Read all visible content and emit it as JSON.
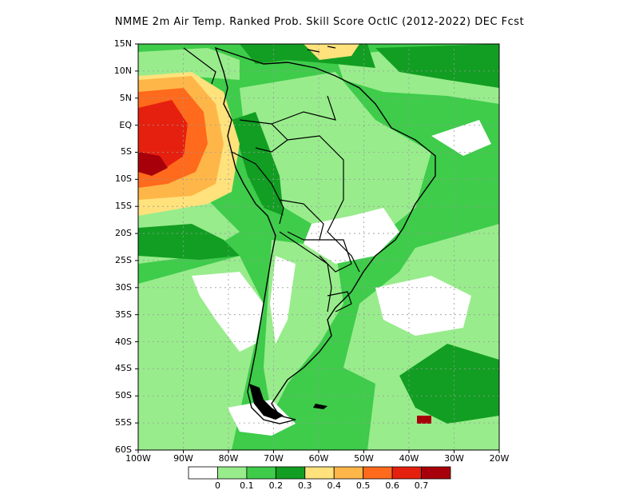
{
  "title": "NMME  2m Air Temp. Ranked Prob. Skill Score OctIC (2012-2022) DEC Fcst",
  "lat_labels": [
    "15N",
    "10N",
    "5N",
    "EQ",
    "5S",
    "10S",
    "15S",
    "20S",
    "25S",
    "30S",
    "35S",
    "40S",
    "45S",
    "50S",
    "55S",
    "60S"
  ],
  "lon_labels": [
    "100W",
    "90W",
    "80W",
    "70W",
    "60W",
    "50W",
    "40W",
    "30W",
    "20W"
  ],
  "colorbar": {
    "tick_labels": [
      "0",
      "0.1",
      "0.2",
      "0.3",
      "0.4",
      "0.5",
      "0.6",
      "0.7"
    ],
    "colors": [
      "#ffffff",
      "#98ec8c",
      "#3ecc4a",
      "#129e22",
      "#ffe27c",
      "#ffb648",
      "#ff6a1c",
      "#e6200f",
      "#a8000a"
    ]
  },
  "colors": {
    "white": "#ffffff",
    "light_green": "#98ec8c",
    "mid_green": "#3ecc4a",
    "dark_green": "#129e22",
    "yellow": "#ffe27c",
    "light_orange": "#ffb648",
    "orange": "#ff6a1c",
    "red": "#e6200f",
    "dark_red": "#a8000a",
    "grid": "#9a9a9a",
    "coast": "#000000"
  }
}
